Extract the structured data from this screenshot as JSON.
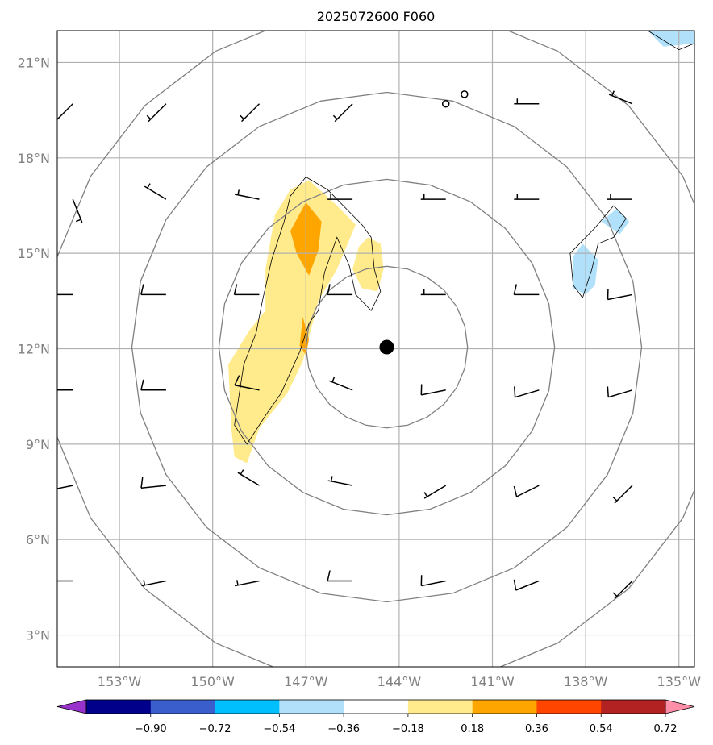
{
  "title": "2025072600 F060",
  "map": {
    "projection": "PlateCarree",
    "lon_range": [
      -155,
      -134.5
    ],
    "lat_range": [
      2,
      22
    ],
    "grid": true,
    "lon_ticks": [
      {
        "value": -153,
        "label": "153°W"
      },
      {
        "value": -150,
        "label": "150°W"
      },
      {
        "value": -147,
        "label": "147°W"
      },
      {
        "value": -144,
        "label": "144°W"
      },
      {
        "value": -141,
        "label": "141°W"
      },
      {
        "value": -138,
        "label": "138°W"
      },
      {
        "value": -135,
        "label": "135°W"
      }
    ],
    "lat_ticks": [
      {
        "value": 3,
        "label": "3°N"
      },
      {
        "value": 6,
        "label": "6°N"
      },
      {
        "value": 9,
        "label": "9°N"
      },
      {
        "value": 12,
        "label": "12°N"
      },
      {
        "value": 15,
        "label": "15°N"
      },
      {
        "value": 18,
        "label": "18°N"
      },
      {
        "value": 21,
        "label": "21°N"
      }
    ],
    "storm_center": {
      "lon": -144.4,
      "lat": 12.05
    },
    "range_circle_radii_deg": [
      2.6,
      5.4,
      8.2,
      11.0
    ],
    "open_marker": {
      "lon": -141.9,
      "lat": 20.0
    }
  },
  "colorbar": {
    "boundaries": [
      -0.9,
      -0.72,
      -0.54,
      -0.36,
      -0.18,
      0.18,
      0.36,
      0.54,
      0.72,
      0.9
    ],
    "tick_labels": [
      "−0.90",
      "−0.72",
      "−0.54",
      "−0.36",
      "−0.18",
      "0.18",
      "0.36",
      "0.54",
      "0.72",
      "0.90"
    ],
    "colors": [
      "#9932cc",
      "#00008b",
      "#3a5fcd",
      "#00bfff",
      "#b0e0fa",
      "#ffffff",
      "#ffeb8c",
      "#ffa500",
      "#ff4500",
      "#b22222",
      "#ff8fa8"
    ],
    "extend": "both"
  },
  "filled_regions": [
    {
      "class": "light-yellow",
      "color": "#ffeb8c",
      "polygon": [
        [
          -146.9,
          17.3
        ],
        [
          -146.0,
          16.5
        ],
        [
          -145.4,
          15.9
        ],
        [
          -146.0,
          14.5
        ],
        [
          -146.6,
          13.5
        ],
        [
          -147.1,
          11.6
        ],
        [
          -147.6,
          10.6
        ],
        [
          -148.5,
          9.5
        ],
        [
          -148.9,
          8.4
        ],
        [
          -149.3,
          8.6
        ],
        [
          -149.4,
          9.5
        ],
        [
          -149.5,
          11.5
        ],
        [
          -148.8,
          12.6
        ],
        [
          -148.3,
          13.2
        ],
        [
          -148.3,
          14.5
        ],
        [
          -148.0,
          16.2
        ],
        [
          -147.5,
          17.0
        ]
      ]
    },
    {
      "class": "light-yellow",
      "color": "#ffeb8c",
      "polygon": [
        [
          -145.0,
          15.5
        ],
        [
          -144.6,
          15.3
        ],
        [
          -144.5,
          14.5
        ],
        [
          -144.7,
          13.8
        ],
        [
          -145.2,
          13.9
        ],
        [
          -145.5,
          14.5
        ],
        [
          -145.3,
          15.2
        ]
      ]
    },
    {
      "class": "orange",
      "color": "#ffa500",
      "polygon": [
        [
          -147.0,
          16.6
        ],
        [
          -146.5,
          16.0
        ],
        [
          -146.6,
          15.1
        ],
        [
          -146.9,
          14.3
        ],
        [
          -147.3,
          15.0
        ],
        [
          -147.5,
          15.7
        ]
      ]
    },
    {
      "class": "orange",
      "color": "#ffa500",
      "polygon": [
        [
          -147.1,
          13.0
        ],
        [
          -146.9,
          12.3
        ],
        [
          -147.0,
          11.8
        ],
        [
          -147.2,
          12.1
        ]
      ]
    },
    {
      "class": "light-blue",
      "color": "#b0e0fa",
      "polygon": [
        [
          -138.1,
          15.3
        ],
        [
          -137.6,
          14.8
        ],
        [
          -137.7,
          14.0
        ],
        [
          -138.0,
          13.7
        ],
        [
          -138.4,
          13.9
        ],
        [
          -138.4,
          14.9
        ]
      ]
    },
    {
      "class": "light-blue",
      "color": "#b0e0fa",
      "polygon": [
        [
          -137.0,
          16.4
        ],
        [
          -136.6,
          16.0
        ],
        [
          -136.9,
          15.6
        ],
        [
          -137.5,
          16.0
        ]
      ]
    },
    {
      "class": "light-blue",
      "color": "#b0e0fa",
      "polygon": [
        [
          -136.0,
          22.0
        ],
        [
          -134.5,
          22.0
        ],
        [
          -134.5,
          21.6
        ],
        [
          -135.5,
          21.5
        ]
      ]
    }
  ],
  "zero_contours": [
    [
      [
        -147.0,
        17.4
      ],
      [
        -146.3,
        17.0
      ],
      [
        -145.6,
        16.3
      ],
      [
        -145.2,
        15.9
      ],
      [
        -144.9,
        15.5
      ],
      [
        -144.8,
        14.5
      ],
      [
        -144.6,
        13.8
      ],
      [
        -144.9,
        13.2
      ],
      [
        -145.4,
        13.7
      ],
      [
        -145.6,
        14.6
      ],
      [
        -146.0,
        15.5
      ],
      [
        -146.4,
        14.4
      ],
      [
        -146.6,
        13.2
      ],
      [
        -146.9,
        12.8
      ],
      [
        -147.2,
        11.9
      ],
      [
        -147.8,
        10.6
      ],
      [
        -148.3,
        9.9
      ],
      [
        -148.9,
        9.0
      ],
      [
        -149.3,
        9.6
      ],
      [
        -149.0,
        11.5
      ],
      [
        -148.6,
        12.5
      ],
      [
        -148.4,
        13.5
      ],
      [
        -148.1,
        14.8
      ],
      [
        -147.7,
        16.0
      ],
      [
        -147.5,
        16.8
      ],
      [
        -147.0,
        17.4
      ]
    ],
    [
      [
        -137.1,
        16.5
      ],
      [
        -136.7,
        16.1
      ],
      [
        -137.1,
        15.5
      ],
      [
        -137.6,
        15.3
      ],
      [
        -137.8,
        14.5
      ],
      [
        -138.1,
        13.6
      ],
      [
        -138.4,
        14.0
      ],
      [
        -138.5,
        15.0
      ],
      [
        -138.3,
        15.2
      ],
      [
        -137.7,
        15.8
      ],
      [
        -137.1,
        16.5
      ]
    ],
    [
      [
        -136.0,
        22.0
      ],
      [
        -135.0,
        21.4
      ],
      [
        -134.5,
        21.6
      ]
    ]
  ],
  "wind_barbs": [
    {
      "lon": -154.5,
      "lat": 19.7,
      "u": 5,
      "v": 5
    },
    {
      "lon": -151.5,
      "lat": 19.7,
      "u": 5,
      "v": 5
    },
    {
      "lon": -148.5,
      "lat": 19.7,
      "u": 5,
      "v": 5
    },
    {
      "lon": -145.5,
      "lat": 19.7,
      "u": 5,
      "v": 5
    },
    {
      "lon": -142.5,
      "lat": 19.7,
      "u": 0,
      "v": 0
    },
    {
      "lon": -139.5,
      "lat": 19.7,
      "u": 5,
      "v": 0
    },
    {
      "lon": -136.5,
      "lat": 19.7,
      "u": 5,
      "v": -2
    },
    {
      "lon": -154.5,
      "lat": 16.7,
      "u": -2,
      "v": 5
    },
    {
      "lon": -151.5,
      "lat": 16.7,
      "u": 5,
      "v": -3
    },
    {
      "lon": -148.5,
      "lat": 16.7,
      "u": 5,
      "v": -1
    },
    {
      "lon": -145.5,
      "lat": 16.7,
      "u": 5,
      "v": 0
    },
    {
      "lon": -142.5,
      "lat": 16.7,
      "u": 5,
      "v": 0
    },
    {
      "lon": -139.5,
      "lat": 16.7,
      "u": 5,
      "v": 0
    },
    {
      "lon": -136.5,
      "lat": 16.7,
      "u": 5,
      "v": 0
    },
    {
      "lon": -154.5,
      "lat": 13.7,
      "u": 10,
      "v": 0
    },
    {
      "lon": -151.5,
      "lat": 13.7,
      "u": 10,
      "v": 0
    },
    {
      "lon": -148.5,
      "lat": 13.7,
      "u": 10,
      "v": 0
    },
    {
      "lon": -145.5,
      "lat": 13.7,
      "u": 10,
      "v": 0
    },
    {
      "lon": -142.5,
      "lat": 13.7,
      "u": 5,
      "v": 0
    },
    {
      "lon": -139.5,
      "lat": 13.7,
      "u": 10,
      "v": 0
    },
    {
      "lon": -136.5,
      "lat": 13.7,
      "u": 10,
      "v": 2
    },
    {
      "lon": -154.5,
      "lat": 10.7,
      "u": 10,
      "v": 0
    },
    {
      "lon": -151.5,
      "lat": 10.7,
      "u": 10,
      "v": 0
    },
    {
      "lon": -148.5,
      "lat": 10.7,
      "u": 10,
      "v": -2
    },
    {
      "lon": -145.5,
      "lat": 10.7,
      "u": 5,
      "v": -2
    },
    {
      "lon": -142.5,
      "lat": 10.7,
      "u": 10,
      "v": 2
    },
    {
      "lon": -139.5,
      "lat": 10.7,
      "u": 10,
      "v": 3
    },
    {
      "lon": -136.5,
      "lat": 10.7,
      "u": 10,
      "v": 3
    },
    {
      "lon": -154.5,
      "lat": 7.7,
      "u": 5,
      "v": 1
    },
    {
      "lon": -151.5,
      "lat": 7.7,
      "u": 10,
      "v": 1
    },
    {
      "lon": -148.5,
      "lat": 7.7,
      "u": 5,
      "v": -3
    },
    {
      "lon": -145.5,
      "lat": 7.7,
      "u": 5,
      "v": -1
    },
    {
      "lon": -142.5,
      "lat": 7.7,
      "u": 5,
      "v": 3
    },
    {
      "lon": -139.5,
      "lat": 7.7,
      "u": 10,
      "v": 5
    },
    {
      "lon": -136.5,
      "lat": 7.7,
      "u": 5,
      "v": 5
    },
    {
      "lon": -154.5,
      "lat": 4.7,
      "u": 5,
      "v": 0
    },
    {
      "lon": -151.5,
      "lat": 4.7,
      "u": 5,
      "v": 1
    },
    {
      "lon": -148.5,
      "lat": 4.7,
      "u": 5,
      "v": 1
    },
    {
      "lon": -145.5,
      "lat": 4.7,
      "u": 10,
      "v": 0
    },
    {
      "lon": -142.5,
      "lat": 4.7,
      "u": 10,
      "v": 2
    },
    {
      "lon": -139.5,
      "lat": 4.7,
      "u": 10,
      "v": 4
    },
    {
      "lon": -136.5,
      "lat": 4.7,
      "u": 5,
      "v": 5
    }
  ]
}
